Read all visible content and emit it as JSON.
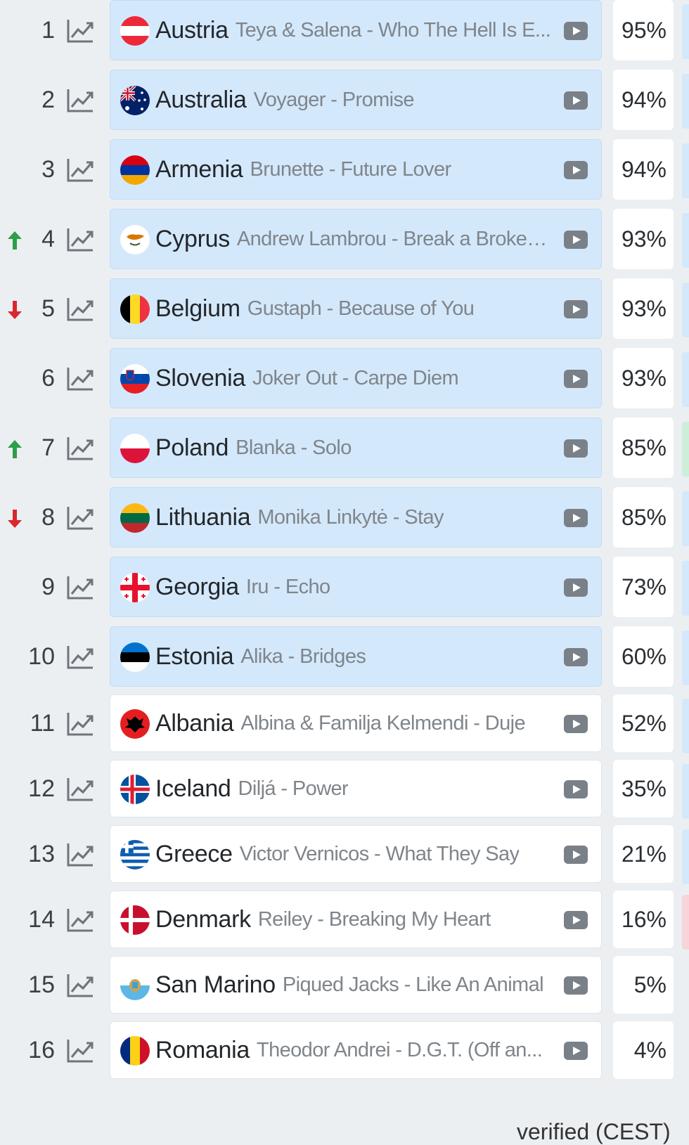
{
  "rows": [
    {
      "rank": "1",
      "trend": "",
      "country": "Austria",
      "song": "Teya & Salena - Who The Hell Is E...",
      "pct": "95%",
      "flag": "austria",
      "qualified": true,
      "edge": "blue"
    },
    {
      "rank": "2",
      "trend": "",
      "country": "Australia",
      "song": "Voyager - Promise",
      "pct": "94%",
      "flag": "australia",
      "qualified": true,
      "edge": "blue"
    },
    {
      "rank": "3",
      "trend": "",
      "country": "Armenia",
      "song": "Brunette - Future Lover",
      "pct": "94%",
      "flag": "armenia",
      "qualified": true,
      "edge": "blue"
    },
    {
      "rank": "4",
      "trend": "up",
      "country": "Cyprus",
      "song": "Andrew Lambrou - Break a Broken ...",
      "pct": "93%",
      "flag": "cyprus",
      "qualified": true,
      "edge": "blue"
    },
    {
      "rank": "5",
      "trend": "down",
      "country": "Belgium",
      "song": "Gustaph - Because of You",
      "pct": "93%",
      "flag": "belgium",
      "qualified": true,
      "edge": "blue"
    },
    {
      "rank": "6",
      "trend": "",
      "country": "Slovenia",
      "song": "Joker Out - Carpe Diem",
      "pct": "93%",
      "flag": "slovenia",
      "qualified": true,
      "edge": "blue"
    },
    {
      "rank": "7",
      "trend": "up",
      "country": "Poland",
      "song": "Blanka - Solo",
      "pct": "85%",
      "flag": "poland",
      "qualified": true,
      "edge": "green"
    },
    {
      "rank": "8",
      "trend": "down",
      "country": "Lithuania",
      "song": "Monika Linkytė - Stay",
      "pct": "85%",
      "flag": "lithuania",
      "qualified": true,
      "edge": "blue"
    },
    {
      "rank": "9",
      "trend": "",
      "country": "Georgia",
      "song": "Iru - Echo",
      "pct": "73%",
      "flag": "georgia",
      "qualified": true,
      "edge": "blue"
    },
    {
      "rank": "10",
      "trend": "",
      "country": "Estonia",
      "song": "Alika - Bridges",
      "pct": "60%",
      "flag": "estonia",
      "qualified": true,
      "edge": "blue"
    },
    {
      "rank": "11",
      "trend": "",
      "country": "Albania",
      "song": "Albina & Familja Kelmendi - Duje",
      "pct": "52%",
      "flag": "albania",
      "qualified": false,
      "edge": "blue"
    },
    {
      "rank": "12",
      "trend": "",
      "country": "Iceland",
      "song": "Diljá - Power",
      "pct": "35%",
      "flag": "iceland",
      "qualified": false,
      "edge": "blue"
    },
    {
      "rank": "13",
      "trend": "",
      "country": "Greece",
      "song": "Victor Vernicos - What They Say",
      "pct": "21%",
      "flag": "greece",
      "qualified": false,
      "edge": "blue"
    },
    {
      "rank": "14",
      "trend": "",
      "country": "Denmark",
      "song": "Reiley - Breaking My Heart",
      "pct": "16%",
      "flag": "denmark",
      "qualified": false,
      "edge": "pink"
    },
    {
      "rank": "15",
      "trend": "",
      "country": "San Marino",
      "song": "Piqued Jacks - Like An Animal",
      "pct": "5%",
      "flag": "sanmarino",
      "qualified": false,
      "edge": "none"
    },
    {
      "rank": "16",
      "trend": "",
      "country": "Romania",
      "song": "Theodor Andrei - D.G.T. (Off an...",
      "pct": "4%",
      "flag": "romania",
      "qualified": false,
      "edge": "none"
    }
  ],
  "footer_note": "verified (CEST)",
  "colors": {
    "qualified_bg": "#d4e8fb",
    "other_bg": "#ffffff",
    "trend_up": "#2e9e4a",
    "trend_down": "#d9272e"
  },
  "icons": {
    "chart": "line-chart-icon",
    "play": "video-play-icon",
    "up": "arrow-up-icon",
    "down": "arrow-down-icon"
  }
}
